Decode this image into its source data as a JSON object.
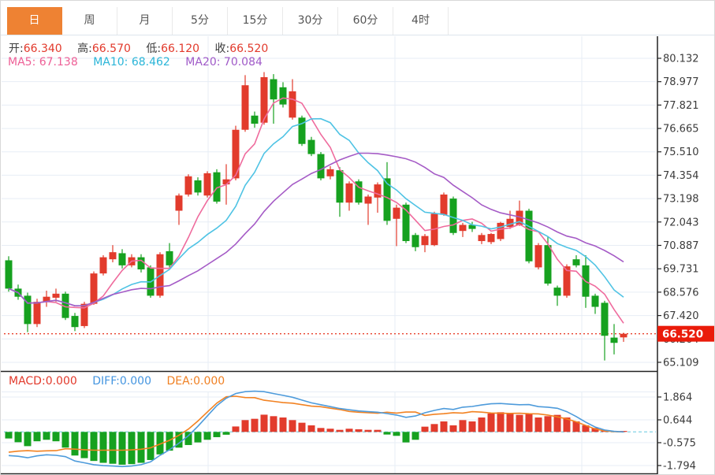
{
  "tabs": [
    {
      "name": "tab-day",
      "label": "日",
      "active": true
    },
    {
      "name": "tab-week",
      "label": "周",
      "active": false
    },
    {
      "name": "tab-month",
      "label": "月",
      "active": false
    },
    {
      "name": "tab-5min",
      "label": "5分",
      "active": false
    },
    {
      "name": "tab-15min",
      "label": "15分",
      "active": false
    },
    {
      "name": "tab-30min",
      "label": "30分",
      "active": false
    },
    {
      "name": "tab-60min",
      "label": "60分",
      "active": false
    },
    {
      "name": "tab-4hour",
      "label": "4时",
      "active": false
    }
  ],
  "quote_bar": {
    "open_label": "开:",
    "open": "66.340",
    "high_label": "高:",
    "high": "66.570",
    "low_label": "低:",
    "low": "66.120",
    "close_label": "收:",
    "close": "66.520"
  },
  "ma_bar": {
    "ma5_label": "MA5:",
    "ma5": "67.138",
    "ma10_label": "MA10:",
    "ma10": "68.462",
    "ma20_label": "MA20:",
    "ma20": "70.084"
  },
  "macd_bar": {
    "macd_label": "MACD:",
    "macd": "0.000",
    "diff_label": "DIFF:",
    "diff": "0.000",
    "dea_label": "DEA:",
    "dea": "0.000"
  },
  "price_badge": "66.520",
  "colors": {
    "up": "#e23b2c",
    "down": "#16a11f",
    "badge_bg": "#ea1b0a",
    "badge_text": "#ffffff",
    "ma5": "#ef6b9d",
    "ma10": "#4fc3e4",
    "ma20": "#a55bc6",
    "diff_line": "#4e9bdb",
    "dea_line": "#f28222",
    "zero_dash": "#8ed7e8",
    "grid": "#e7edf5",
    "axis": "#222222",
    "tick_text": "#3b3b3b",
    "price_dotted_line": "#e8402c",
    "tab_active_bg": "#ee8233"
  },
  "chart_data": {
    "type": "candlestick",
    "grid": true,
    "legend_position": "none",
    "price_panel": {
      "y_ticks": [
        80.132,
        78.977,
        77.821,
        76.665,
        75.51,
        74.354,
        73.198,
        72.043,
        70.887,
        69.731,
        68.576,
        67.42,
        66.264,
        65.109
      ],
      "last_price": 66.52,
      "ma_periods": [
        5,
        10,
        20
      ],
      "candles_ohlc": [
        [
          70.15,
          70.35,
          68.6,
          68.75
        ],
        [
          68.75,
          68.95,
          68.2,
          68.35
        ],
        [
          68.4,
          68.55,
          66.6,
          67.0
        ],
        [
          67.0,
          68.25,
          66.85,
          68.1
        ],
        [
          68.1,
          68.65,
          67.85,
          68.35
        ],
        [
          68.3,
          68.75,
          68.1,
          68.5
        ],
        [
          68.5,
          68.6,
          67.2,
          67.3
        ],
        [
          67.4,
          67.55,
          66.65,
          66.85
        ],
        [
          66.9,
          68.1,
          66.8,
          68.0
        ],
        [
          68.0,
          69.6,
          67.95,
          69.5
        ],
        [
          69.5,
          70.4,
          69.4,
          70.3
        ],
        [
          70.2,
          70.9,
          70.05,
          70.55
        ],
        [
          70.5,
          70.7,
          69.75,
          69.9
        ],
        [
          69.9,
          70.45,
          69.8,
          70.3
        ],
        [
          70.3,
          70.45,
          69.55,
          69.7
        ],
        [
          69.8,
          69.9,
          68.3,
          68.4
        ],
        [
          68.4,
          70.55,
          68.3,
          70.45
        ],
        [
          70.6,
          71.0,
          69.8,
          69.9
        ],
        [
          72.6,
          73.45,
          71.9,
          73.35
        ],
        [
          73.4,
          74.4,
          73.3,
          74.3
        ],
        [
          74.1,
          74.25,
          73.35,
          73.5
        ],
        [
          73.35,
          74.55,
          73.25,
          74.45
        ],
        [
          74.5,
          74.65,
          72.95,
          73.05
        ],
        [
          73.9,
          74.9,
          72.9,
          74.15
        ],
        [
          74.2,
          76.8,
          74.1,
          76.6
        ],
        [
          76.6,
          79.3,
          76.5,
          78.8
        ],
        [
          77.3,
          77.5,
          76.7,
          76.9
        ],
        [
          76.95,
          79.45,
          76.85,
          79.2
        ],
        [
          79.1,
          79.35,
          76.9,
          78.1
        ],
        [
          78.7,
          78.95,
          77.7,
          77.85
        ],
        [
          77.2,
          79.1,
          77.1,
          78.5
        ],
        [
          77.2,
          77.3,
          75.8,
          75.9
        ],
        [
          76.1,
          76.25,
          75.3,
          75.4
        ],
        [
          75.4,
          75.5,
          74.1,
          74.2
        ],
        [
          74.3,
          74.8,
          74.15,
          74.65
        ],
        [
          74.6,
          74.75,
          72.3,
          73.0
        ],
        [
          73.0,
          74.05,
          72.6,
          73.95
        ],
        [
          74.05,
          74.15,
          72.9,
          73.0
        ],
        [
          72.95,
          73.4,
          71.9,
          73.3
        ],
        [
          73.25,
          74.0,
          72.5,
          73.9
        ],
        [
          74.2,
          75.0,
          71.9,
          72.1
        ],
        [
          72.2,
          72.9,
          70.85,
          72.75
        ],
        [
          72.9,
          73.0,
          71.0,
          71.1
        ],
        [
          71.4,
          71.5,
          70.6,
          70.8
        ],
        [
          70.9,
          71.45,
          70.55,
          71.35
        ],
        [
          70.9,
          72.55,
          70.85,
          72.45
        ],
        [
          72.4,
          73.5,
          72.35,
          73.4
        ],
        [
          73.2,
          73.3,
          71.4,
          71.5
        ],
        [
          71.6,
          72.0,
          71.3,
          71.9
        ],
        [
          71.9,
          72.05,
          71.55,
          71.7
        ],
        [
          71.1,
          71.5,
          70.95,
          71.4
        ],
        [
          71.05,
          71.5,
          70.95,
          71.45
        ],
        [
          71.2,
          72.05,
          71.1,
          72.0
        ],
        [
          71.8,
          72.6,
          71.7,
          72.2
        ],
        [
          71.9,
          73.1,
          71.85,
          72.6
        ],
        [
          72.6,
          72.7,
          70.0,
          70.1
        ],
        [
          69.8,
          71.0,
          69.7,
          70.9
        ],
        [
          70.9,
          71.3,
          68.9,
          69.0
        ],
        [
          68.8,
          68.9,
          67.9,
          68.4
        ],
        [
          68.4,
          69.95,
          68.3,
          69.85
        ],
        [
          70.2,
          70.4,
          69.8,
          69.9
        ],
        [
          69.9,
          70.4,
          67.8,
          68.35
        ],
        [
          68.4,
          68.5,
          67.5,
          67.85
        ],
        [
          68.05,
          68.15,
          65.2,
          66.42
        ],
        [
          66.33,
          67.0,
          65.5,
          66.07
        ],
        [
          66.34,
          66.57,
          66.12,
          66.52
        ]
      ]
    },
    "macd_panel": {
      "y_ticks": [
        1.864,
        0.644,
        -0.575,
        -1.794
      ],
      "hist_formula": "hist = 2*(DIFF-DEA)",
      "hist": [
        -0.35,
        -0.55,
        -0.76,
        -0.5,
        -0.42,
        -0.5,
        -0.84,
        -1.26,
        -1.4,
        -1.55,
        -1.65,
        -1.7,
        -1.75,
        -1.72,
        -1.65,
        -1.5,
        -1.2,
        -1.0,
        -0.84,
        -0.7,
        -0.56,
        -0.42,
        -0.28,
        -0.15,
        0.29,
        0.63,
        0.7,
        0.92,
        0.84,
        0.77,
        0.63,
        0.49,
        0.35,
        0.21,
        0.17,
        0.11,
        0.17,
        0.14,
        0.11,
        0.11,
        -0.14,
        -0.21,
        -0.56,
        -0.42,
        0.28,
        0.42,
        0.56,
        0.35,
        0.63,
        0.56,
        0.77,
        0.98,
        1.05,
        0.98,
        0.91,
        0.98,
        0.77,
        0.84,
        0.91,
        0.77,
        0.56,
        0.35,
        0.21,
        0.08,
        0.03,
        0.0
      ],
      "diff": [
        -1.26,
        -1.3,
        -1.38,
        -1.28,
        -1.22,
        -1.25,
        -1.32,
        -1.55,
        -1.65,
        -1.75,
        -1.8,
        -1.82,
        -1.85,
        -1.82,
        -1.75,
        -1.6,
        -1.25,
        -0.95,
        -0.6,
        -0.2,
        0.3,
        0.85,
        1.4,
        1.8,
        2.05,
        2.15,
        2.18,
        2.15,
        2.05,
        1.95,
        1.85,
        1.7,
        1.55,
        1.45,
        1.35,
        1.25,
        1.18,
        1.12,
        1.08,
        1.05,
        0.98,
        0.9,
        0.78,
        0.85,
        1.02,
        1.15,
        1.25,
        1.2,
        1.32,
        1.36,
        1.44,
        1.5,
        1.52,
        1.48,
        1.45,
        1.46,
        1.35,
        1.32,
        1.26,
        1.08,
        0.82,
        0.52,
        0.26,
        0.1,
        0.03,
        0.0
      ]
    }
  }
}
